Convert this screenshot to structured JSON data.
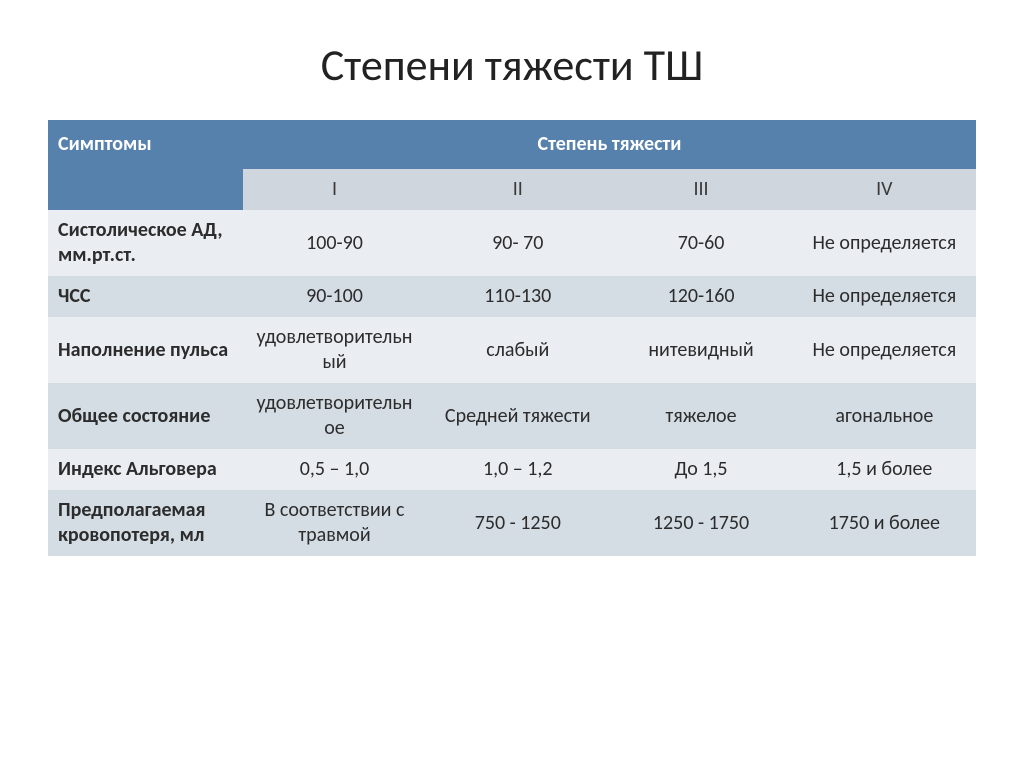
{
  "slide": {
    "title": "Степени тяжести ТШ"
  },
  "table": {
    "type": "table",
    "background_color": "#ffffff",
    "header_bg": "#5781ad",
    "header_text_color": "#ffffff",
    "subheader_bg": "#d0d6de",
    "row_odd_bg": "#eaeef3",
    "row_even_bg": "#d4dce4",
    "title_fontsize": 44,
    "cell_fontsize": 20,
    "columns": {
      "symptom_label": "Симптомы",
      "severity_label": "Степень  тяжести",
      "degrees": [
        "I",
        "II",
        "III",
        "IV"
      ]
    },
    "rows": [
      {
        "symptom": "Систолическое АД, мм.рт.ст.",
        "values": [
          "100-90",
          "90- 70",
          "70-60",
          "Не определяется"
        ]
      },
      {
        "symptom": "ЧСС",
        "values": [
          "90-100",
          "110-130",
          "120-160",
          "Не определяется"
        ]
      },
      {
        "symptom": "Наполнение пульса",
        "values": [
          "удовлетворительный",
          "слабый",
          "нитевидный",
          "Не определяется"
        ]
      },
      {
        "symptom": "Общее состояние",
        "values": [
          "удовлетворительное",
          "Средней тяжести",
          "тяжелое",
          "агональное"
        ]
      },
      {
        "symptom": "Индекс Альговера",
        "values": [
          "0,5 – 1,0",
          "1,0 – 1,2",
          "До 1,5",
          "1,5 и более"
        ]
      },
      {
        "symptom": "Предполагаемая кровопотеря, мл",
        "values": [
          "В соответствии с травмой",
          "750 - 1250",
          "1250 - 1750",
          "1750 и более"
        ]
      }
    ]
  }
}
